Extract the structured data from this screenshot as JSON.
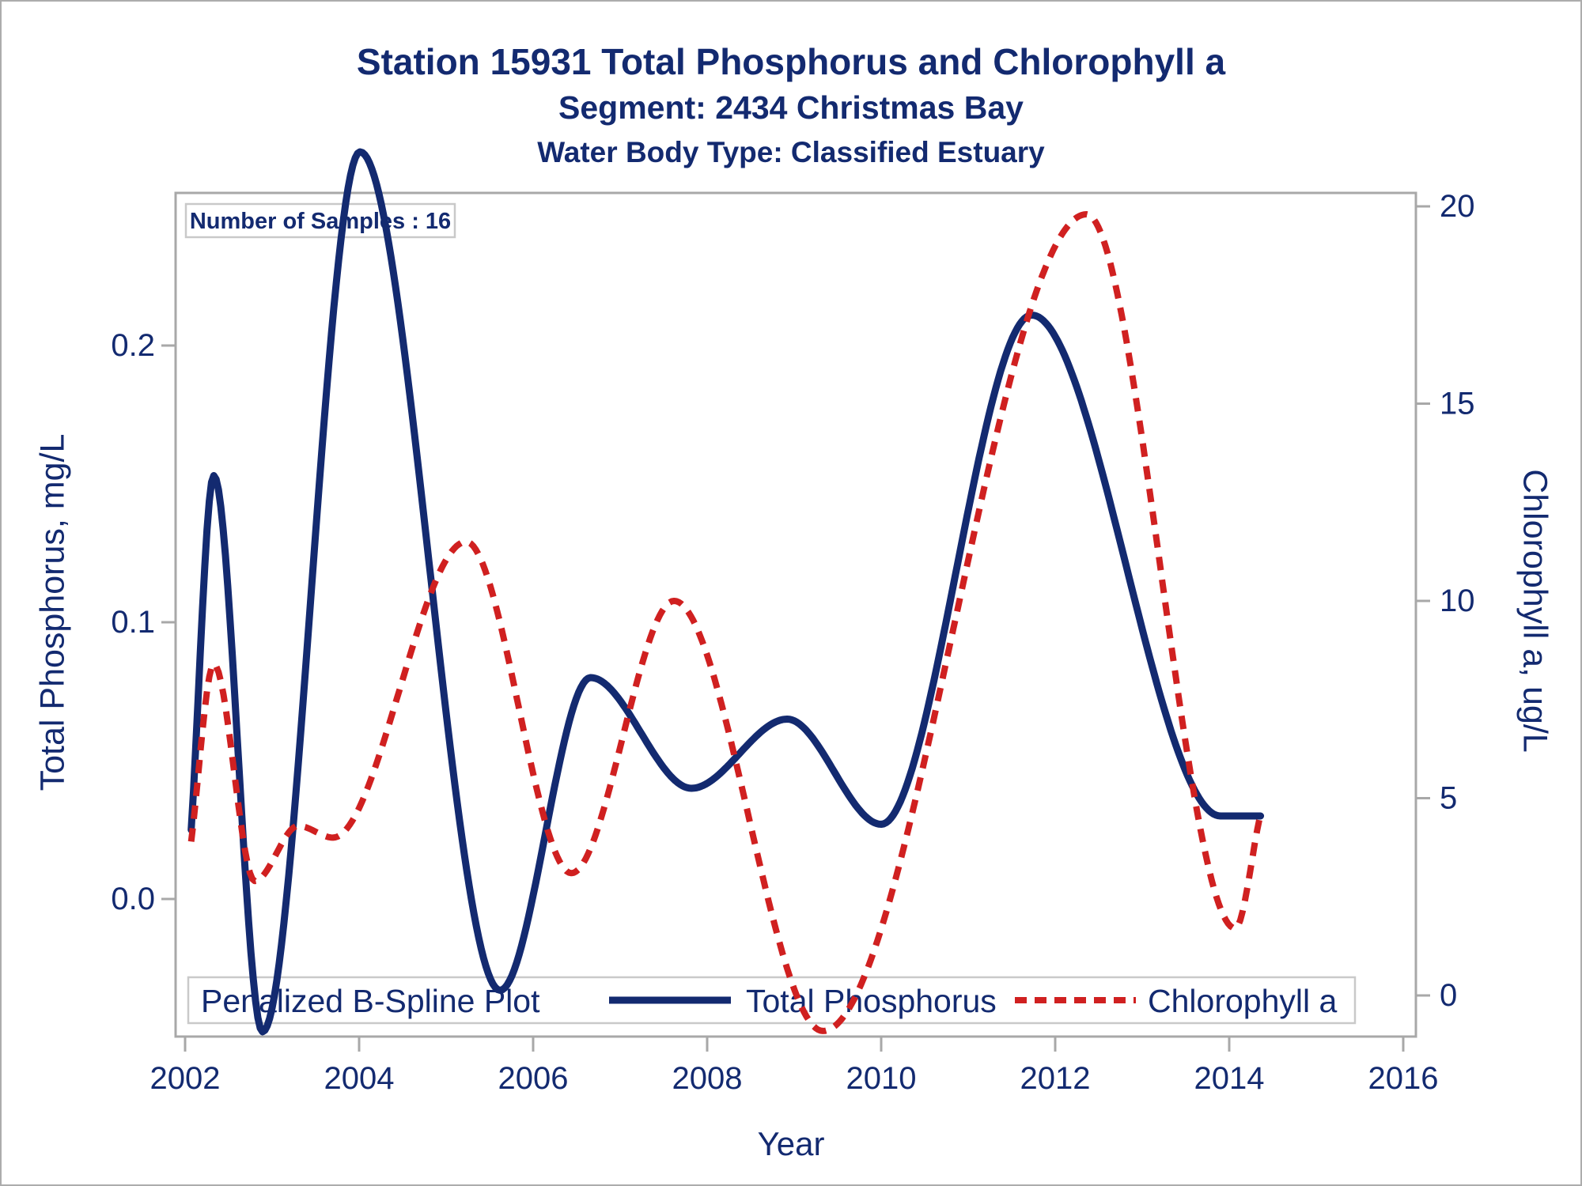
{
  "titles": {
    "line1": "Station 15931  Total Phosphorus and Chlorophyll a",
    "line2": "Segment: 2434  Christmas Bay",
    "line3": "Water Body Type: Classified Estuary"
  },
  "inset_box": {
    "text": "Number of Samples : 16"
  },
  "legend": {
    "title": "Penalized B-Spline Plot",
    "items": [
      {
        "label": "Total Phosphorus",
        "style": "solid",
        "color": "#132A70"
      },
      {
        "label": "Chlorophyll a",
        "style": "dashed",
        "color": "#D02020"
      }
    ]
  },
  "colors": {
    "navy": "#132A70",
    "red": "#D02020",
    "axis_gray": "#A8A8A8",
    "box_border": "#C9C9C9"
  },
  "chart_data": {
    "type": "line",
    "title": "Station 15931  Total Phosphorus and Chlorophyll a",
    "subtitle": "Segment: 2434  Christmas Bay",
    "subtitle2": "Water Body Type: Classified Estuary",
    "xlabel": "Year",
    "ylabel_left": "Total Phosphorus, mg/L",
    "ylabel_right": "Chlorophyll a, ug/L",
    "number_of_samples": 16,
    "grid": false,
    "legend_position": "bottom-inside",
    "x_ticks": [
      2002,
      2004,
      2006,
      2008,
      2010,
      2012,
      2014,
      2016
    ],
    "x_tick_labels": [
      "2002",
      "2004",
      "2006",
      "2008",
      "2010",
      "2012",
      "2014",
      "2016"
    ],
    "x_range": [
      2001.89,
      2016.15
    ],
    "y_left_ticks": [
      0.0,
      0.1,
      0.2
    ],
    "y_left_tick_labels": [
      "0.0",
      "0.1",
      "0.2"
    ],
    "y_left_range": [
      -0.05,
      0.255
    ],
    "y_right_ticks": [
      0,
      5,
      10,
      15,
      20
    ],
    "y_right_tick_labels": [
      "0",
      "5",
      "10",
      "15",
      "20"
    ],
    "y_right_range": [
      -1.04,
      20.34
    ],
    "series": [
      {
        "name": "Total Phosphorus",
        "axis": "left",
        "style": "solid",
        "color": "#132A70",
        "units": "mg/L",
        "points": [
          [
            2002.07,
            0.025
          ],
          [
            2002.33,
            0.153
          ],
          [
            2002.89,
            -0.048
          ],
          [
            2004.01,
            0.27
          ],
          [
            2005.62,
            -0.033
          ],
          [
            2006.66,
            0.08
          ],
          [
            2007.82,
            0.04
          ],
          [
            2008.92,
            0.065
          ],
          [
            2010.0,
            0.027
          ],
          [
            2011.73,
            0.211
          ],
          [
            2013.9,
            0.03
          ],
          [
            2014.36,
            0.03
          ]
        ]
      },
      {
        "name": "Chlorophyll a",
        "axis": "right",
        "style": "dashed",
        "color": "#D02020",
        "units": "ug/L",
        "points": [
          [
            2002.07,
            3.9
          ],
          [
            2002.33,
            8.4
          ],
          [
            2002.8,
            2.9
          ],
          [
            2003.3,
            4.3
          ],
          [
            2003.7,
            4.0
          ],
          [
            2005.23,
            11.5
          ],
          [
            2006.44,
            3.1
          ],
          [
            2007.62,
            10.0
          ],
          [
            2009.33,
            -0.9
          ],
          [
            2012.36,
            19.8
          ],
          [
            2014.07,
            1.7
          ],
          [
            2014.35,
            4.5
          ]
        ]
      }
    ]
  }
}
